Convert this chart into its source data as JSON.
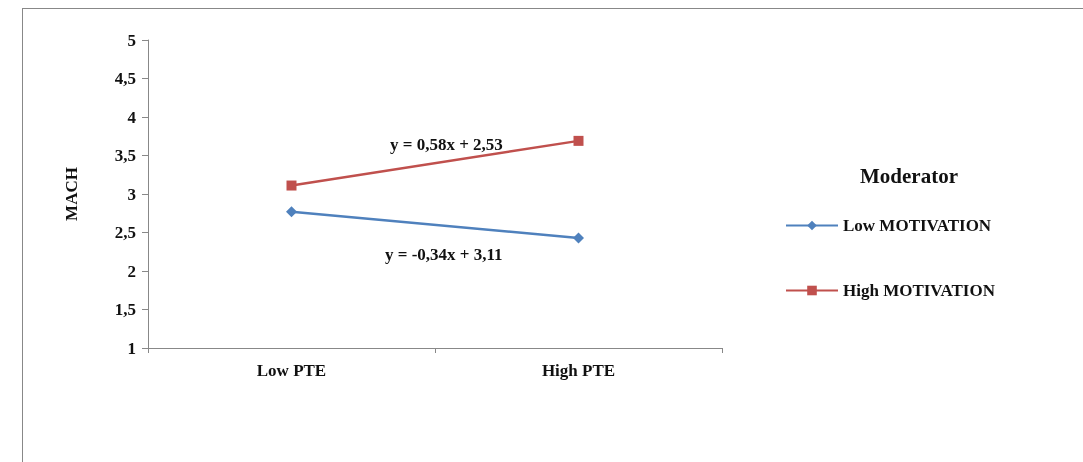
{
  "chart_data": {
    "type": "line",
    "ylabel": "MACH",
    "legend_title": "Moderator",
    "categories": [
      "Low PTE",
      "High PTE"
    ],
    "series": [
      {
        "name": "Low MOTIVATION",
        "color": "#4f81bd",
        "marker": "diamond",
        "values": [
          2.77,
          2.43
        ]
      },
      {
        "name": "High MOTIVATION",
        "color": "#c0504d",
        "marker": "square",
        "values": [
          3.11,
          3.69
        ]
      }
    ],
    "ylim": [
      1,
      5
    ],
    "yticks": [
      1,
      {
        "value": 1.5,
        "label": "1,5"
      },
      2,
      {
        "value": 2.5,
        "label": "2,5"
      },
      3,
      {
        "value": 3.5,
        "label": "3,5"
      },
      4,
      {
        "value": 4.5,
        "label": "4,5"
      },
      5
    ],
    "annotations": [
      "y = 0,58x + 2,53",
      "y = -0,34x + 3,11"
    ],
    "grid": false,
    "legend": "right"
  }
}
